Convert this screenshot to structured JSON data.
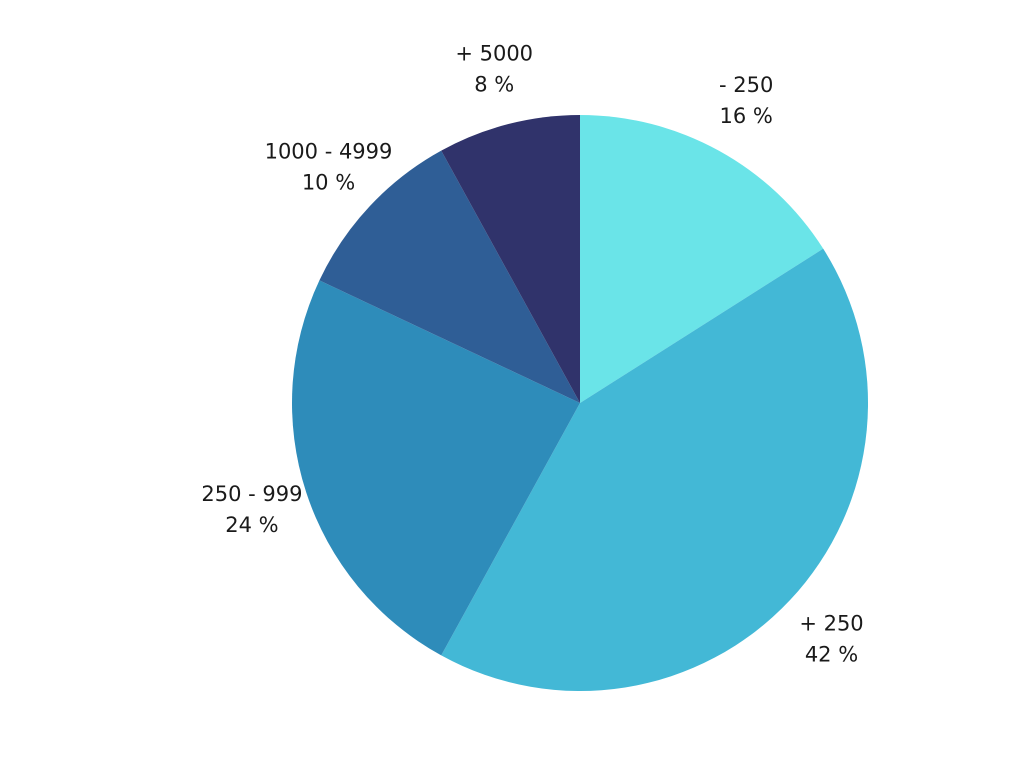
{
  "chart_data": {
    "type": "pie",
    "slices": [
      {
        "label": "- 250",
        "percent_label": "16 %",
        "value": 16,
        "color": "#6ae4e8"
      },
      {
        "label": "+ 250",
        "percent_label": "42 %",
        "value": 42,
        "color": "#43b8d6"
      },
      {
        "label": "250 - 999",
        "percent_label": "24 %",
        "value": 24,
        "color": "#2e8cba"
      },
      {
        "label": "1000 - 4999",
        "percent_label": "10 %",
        "value": 10,
        "color": "#2f5e96"
      },
      {
        "label": "+ 5000",
        "percent_label": "8 %",
        "value": 8,
        "color": "#30336b"
      }
    ],
    "start_angle_deg": 0,
    "direction": "clockwise",
    "legend": "none",
    "labels_position": "outside"
  }
}
